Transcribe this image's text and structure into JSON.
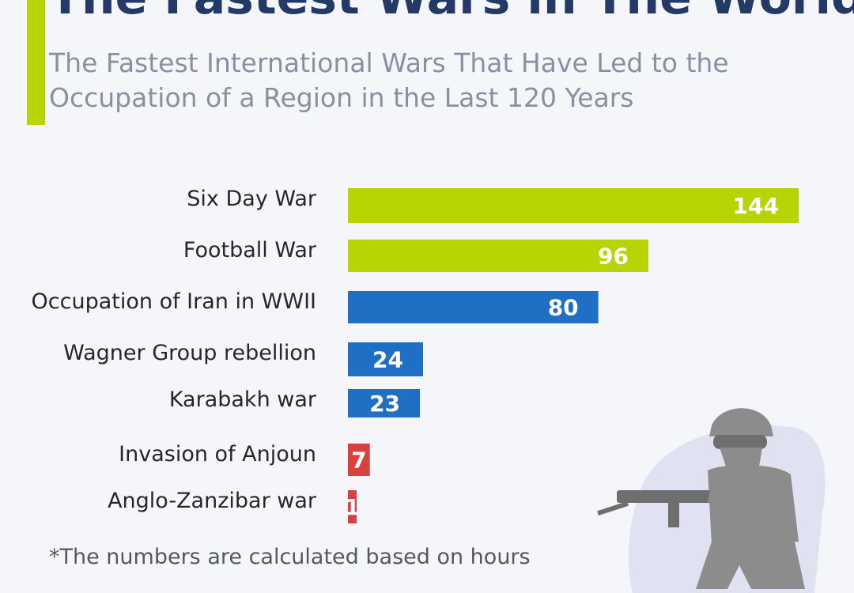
{
  "header": {
    "title": "The Fastest Wars in The World",
    "subtitle": "The Fastest International Wars That Have Led to the Occupation of a Region in the Last 120 Years"
  },
  "footnote": "*The numbers are calculated based on hours",
  "colors": {
    "accent": "#b9d404",
    "title": "#243a66",
    "green": "#b9d404",
    "blue": "#1f6fc5",
    "red": "#d94040"
  },
  "illustration": {
    "icon": "soldier-icon"
  },
  "chart_data": {
    "type": "bar",
    "orientation": "horizontal",
    "title": "The Fastest Wars in The World",
    "subtitle": "The Fastest International Wars That Have Led to the Occupation of a Region in the Last 120 Years",
    "categories": [
      "Six Day War",
      "Football War",
      "Occupation of Iran in WWII",
      "Wagner Group rebellion",
      "Karabakh war",
      "Invasion of Anjoun",
      "Anglo-Zanzibar war"
    ],
    "values": [
      144,
      96,
      80,
      24,
      23,
      7,
      1
    ],
    "bar_colors": [
      "#b9d404",
      "#b9d404",
      "#1f6fc5",
      "#1f6fc5",
      "#1f6fc5",
      "#d94040",
      "#d94040"
    ],
    "unit": "hours",
    "grid": false,
    "legend": "none"
  }
}
